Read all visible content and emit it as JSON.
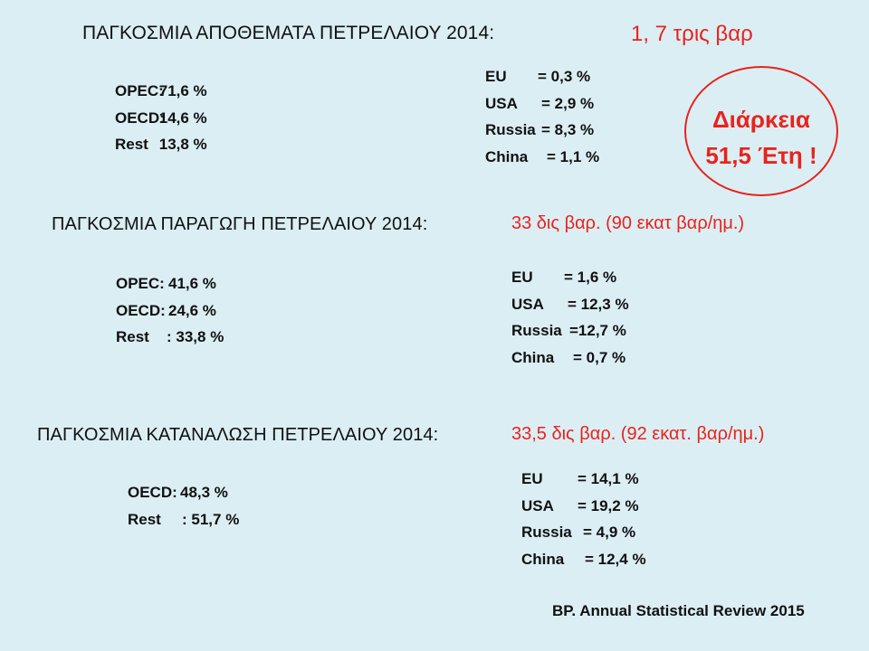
{
  "reserves": {
    "title": "ΠΑΓΚΟΣΜΙΑ ΑΠΟΘΕΜΑΤΑ ΠΕΤΡΕΛΑΙΟΥ 2014:",
    "total": "1, 7 τρις βαρ",
    "groups": [
      {
        "label": "OPEC:",
        "value": "71,6 %"
      },
      {
        "label": "OECD:",
        "value": "14,6 %"
      },
      {
        "label": "Rest",
        "value": "13,8 %"
      }
    ],
    "countries": [
      {
        "label": "EU",
        "value": "= 0,3 %"
      },
      {
        "label": "USA",
        "value": "= 2,9 %"
      },
      {
        "label": "Russia",
        "value": "= 8,3 %"
      },
      {
        "label": "China",
        "value": "= 1,1 %"
      }
    ],
    "duration_line1": "Διάρκεια",
    "duration_line2": "51,5 Έτη !"
  },
  "production": {
    "title": "ΠΑΓΚΟΣΜΙΑ ΠΑΡΑΓΩΓΗ ΠΕΤΡΕΛΑΙΟΥ 2014:",
    "total": "33 δις βαρ. (90 εκατ βαρ/ημ.)",
    "groups": [
      {
        "label": "OPEC:",
        "value": "41,6 %"
      },
      {
        "label": "OECD:",
        "value": "24,6 %"
      },
      {
        "label": "Rest",
        "value": ": 33,8 %"
      }
    ],
    "countries": [
      {
        "label": "EU",
        "value": "= 1,6 %"
      },
      {
        "label": "USA",
        "value": "= 12,3 %"
      },
      {
        "label": "Russia",
        "value": "=12,7 %"
      },
      {
        "label": "China",
        "value": "= 0,7 %"
      }
    ]
  },
  "consumption": {
    "title": "ΠΑΓΚΟΣΜΙΑ ΚΑΤΑΝΑΛΩΣΗ ΠΕΤΡΕΛΑΙΟΥ 2014:",
    "total": "33,5 δις βαρ. (92 εκατ. βαρ/ημ.)",
    "groups": [
      {
        "label": "OECD:",
        "value": "48,3 %"
      },
      {
        "label": "Rest",
        "value": ": 51,7 %"
      }
    ],
    "countries": [
      {
        "label": "EU",
        "value": "= 14,1 %"
      },
      {
        "label": "USA",
        "value": "= 19,2 %"
      },
      {
        "label": "Russia",
        "value": "= 4,9 %"
      },
      {
        "label": "China",
        "value": "= 12,4 %"
      }
    ]
  },
  "source": "BP. Annual Statistical Review 2015"
}
